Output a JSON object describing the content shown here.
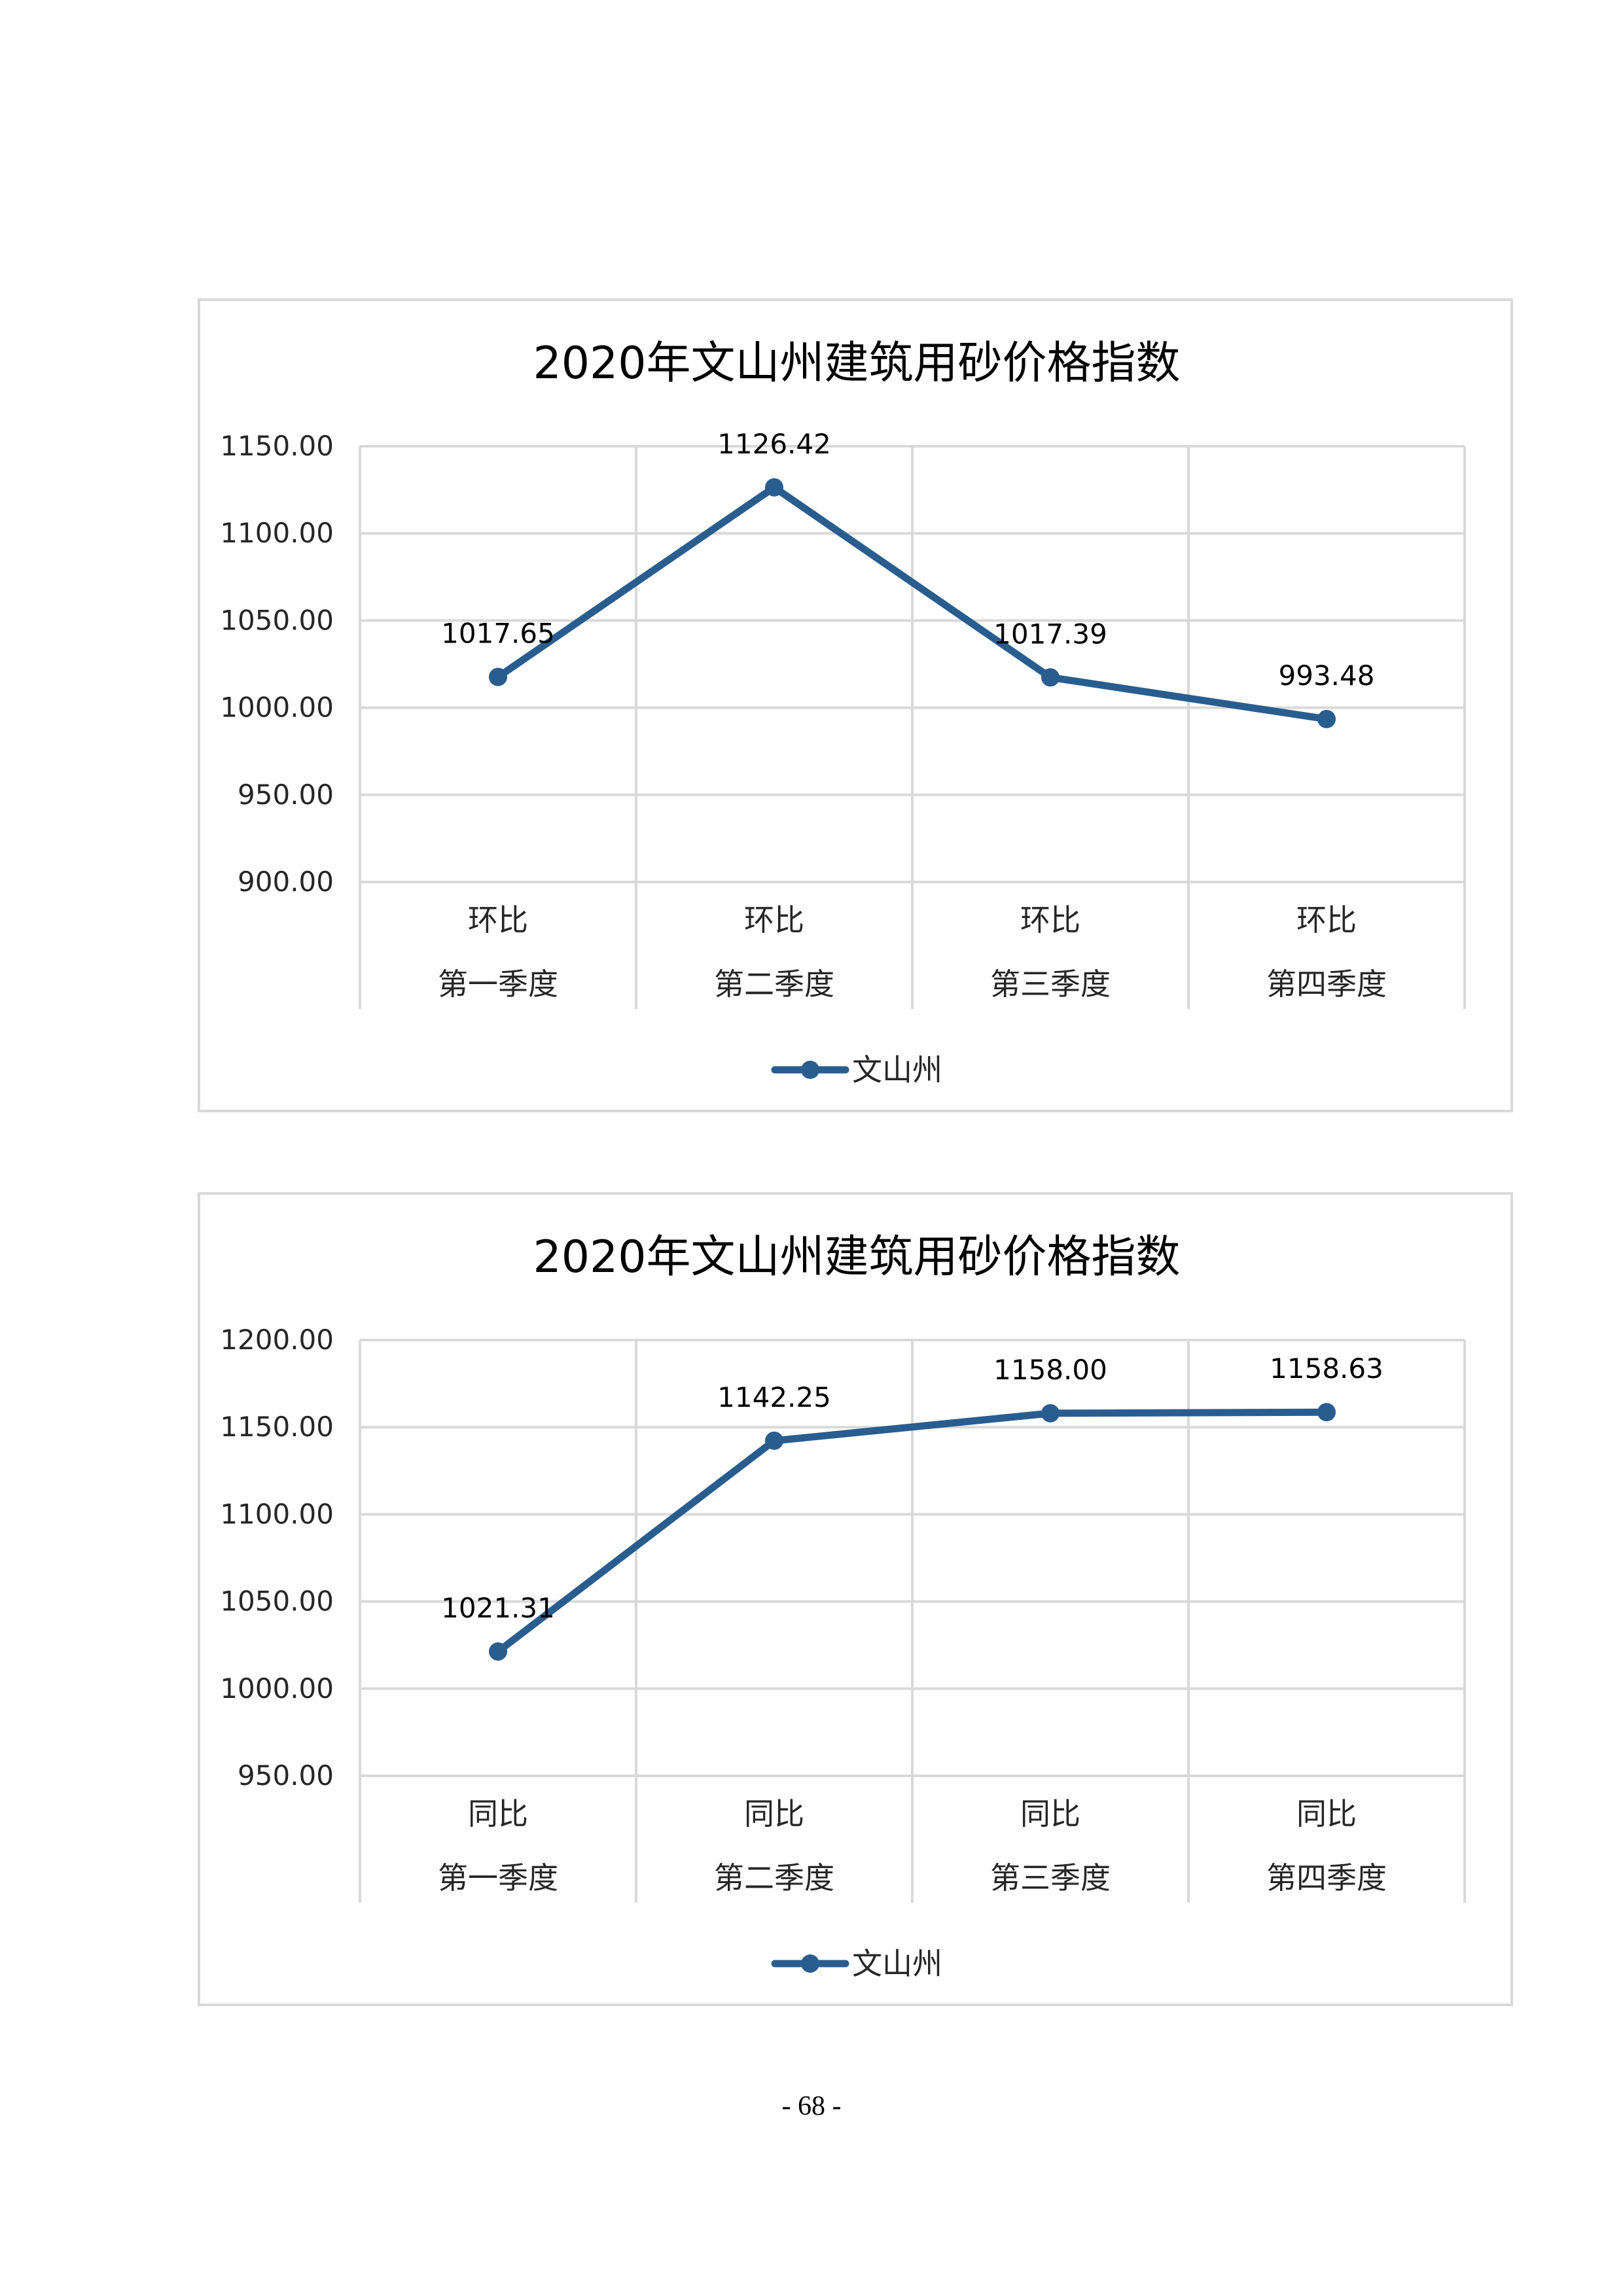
{
  "colors": {
    "series": "#2a5d8f",
    "grid": "#d9d9d9",
    "text": "#000000",
    "axis_text": "#262626"
  },
  "chart_data": [
    {
      "type": "line",
      "title": "2020年文山州建筑用砂价格指数",
      "categories": [
        [
          "环比",
          "第一季度"
        ],
        [
          "环比",
          "第二季度"
        ],
        [
          "环比",
          "第三季度"
        ],
        [
          "环比",
          "第四季度"
        ]
      ],
      "series": [
        {
          "name": "文山州",
          "values": [
            1017.65,
            1126.42,
            1017.39,
            993.48
          ]
        }
      ],
      "data_labels": [
        "1017.65",
        "1126.42",
        "1017.39",
        "993.48"
      ],
      "yticks": [
        "1150.00",
        "1100.00",
        "1050.00",
        "1000.00",
        "950.00",
        "900.00"
      ],
      "ylim": [
        900,
        1150
      ],
      "grid": true,
      "legend_position": "bottom"
    },
    {
      "type": "line",
      "title": "2020年文山州建筑用砂价格指数",
      "categories": [
        [
          "同比",
          "第一季度"
        ],
        [
          "同比",
          "第二季度"
        ],
        [
          "同比",
          "第三季度"
        ],
        [
          "同比",
          "第四季度"
        ]
      ],
      "series": [
        {
          "name": "文山州",
          "values": [
            1021.31,
            1142.25,
            1158.0,
            1158.63
          ]
        }
      ],
      "data_labels": [
        "1021.31",
        "1142.25",
        "1158.00",
        "1158.63"
      ],
      "yticks": [
        "1200.00",
        "1150.00",
        "1100.00",
        "1050.00",
        "1000.00",
        "950.00"
      ],
      "ylim": [
        950,
        1200
      ],
      "grid": true,
      "legend_position": "bottom"
    }
  ],
  "page": {
    "number": "- 68 -"
  }
}
